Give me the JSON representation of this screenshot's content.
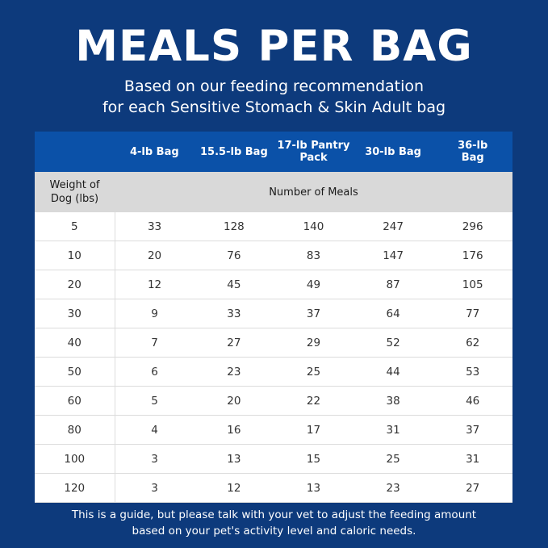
{
  "title": "MEALS PER BAG",
  "subtitle_line1": "Based on our feeding recommendation",
  "subtitle_line2": "for each Sensitive Stomach & Skin Adult bag",
  "colors": {
    "background": "#0d3a7c",
    "header": "#0b51a8",
    "subheader": "#d9d9d9"
  },
  "table": {
    "columns": [
      "",
      "4-lb Bag",
      "15.5-lb Bag",
      "17-lb Pantry Pack",
      "30-lb Bag",
      "36-lb Bag"
    ],
    "row_header_label": "Weight of Dog (lbs)",
    "group_label": "Number of Meals",
    "rows": [
      [
        "5",
        "33",
        "128",
        "140",
        "247",
        "296"
      ],
      [
        "10",
        "20",
        "76",
        "83",
        "147",
        "176"
      ],
      [
        "20",
        "12",
        "45",
        "49",
        "87",
        "105"
      ],
      [
        "30",
        "9",
        "33",
        "37",
        "64",
        "77"
      ],
      [
        "40",
        "7",
        "27",
        "29",
        "52",
        "62"
      ],
      [
        "50",
        "6",
        "23",
        "25",
        "44",
        "53"
      ],
      [
        "60",
        "5",
        "20",
        "22",
        "38",
        "46"
      ],
      [
        "80",
        "4",
        "16",
        "17",
        "31",
        "37"
      ],
      [
        "100",
        "3",
        "13",
        "15",
        "25",
        "31"
      ],
      [
        "120",
        "3",
        "12",
        "13",
        "23",
        "27"
      ]
    ]
  },
  "footer_line1": "This is a guide, but please talk with your vet to adjust the feeding amount",
  "footer_line2": "based on your pet's activity level and caloric needs."
}
